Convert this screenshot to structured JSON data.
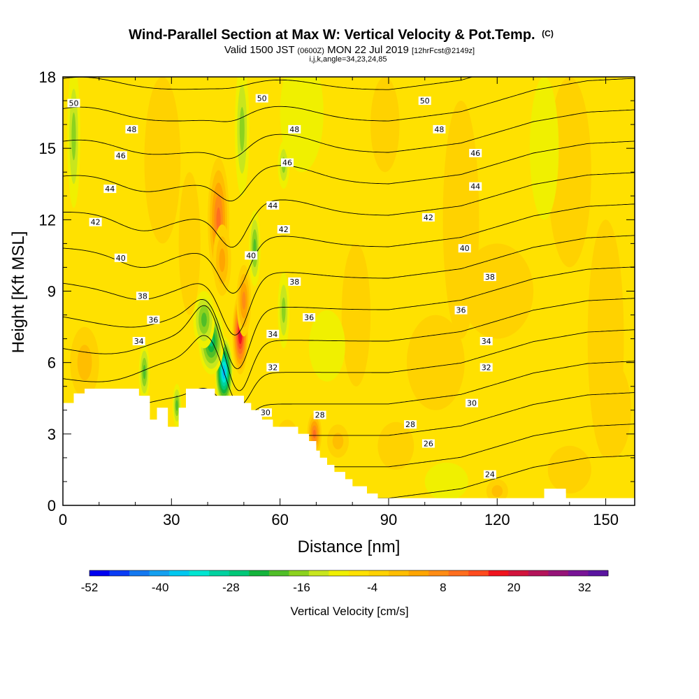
{
  "chart_data": {
    "type": "heatmap",
    "title": "Wind-Parallel Section at Max W: Vertical Velocity & Pot.Temp.",
    "title_mark": "(C)",
    "subtitle_main": "Valid 1500 JST",
    "subtitle_z": "(0600Z)",
    "subtitle_date": "MON 22 Jul 2019",
    "subtitle_fcst": "[12hrFcst@2149z]",
    "subtitle2": "i,j,k,angle=34,23,24,85",
    "xlabel": "Distance [nm]",
    "ylabel": "Height [Kft MSL]",
    "xlim": [
      0,
      158
    ],
    "ylim": [
      0,
      18
    ],
    "xticks": [
      0,
      30,
      60,
      90,
      120,
      150
    ],
    "yticks": [
      0,
      3,
      6,
      9,
      12,
      15,
      18
    ],
    "grid": false,
    "colorbar": {
      "label": "Vertical Velocity [cm/s]",
      "ticks": [
        -52,
        -40,
        -28,
        -16,
        -4,
        8,
        20,
        32
      ],
      "range": [
        -52,
        36
      ],
      "step": 4,
      "colors": [
        "#0000f0",
        "#0a3cf5",
        "#1478f0",
        "#14a0f0",
        "#00c8f0",
        "#00e6d2",
        "#00d2a0",
        "#00c878",
        "#14b43c",
        "#50be28",
        "#8cd21e",
        "#c8e61e",
        "#f0f000",
        "#ffe100",
        "#ffd200",
        "#ffbe00",
        "#ffa500",
        "#ff8c14",
        "#ff6e1e",
        "#ff4b1e",
        "#f0141e",
        "#d2143c",
        "#b4145a",
        "#961478",
        "#781496",
        "#5a14a0"
      ]
    },
    "background_w": 1.5,
    "w_cells": [
      {
        "x": 43,
        "y": 12,
        "sx": 3,
        "sy": 2.6,
        "w": 22
      },
      {
        "x": 44,
        "y": 10.3,
        "sx": 2.5,
        "sy": 1.5,
        "w": 12
      },
      {
        "x": 49,
        "y": 7.2,
        "sx": 2.2,
        "sy": 1.7,
        "w": 34
      },
      {
        "x": 50,
        "y": 8.6,
        "sx": 2,
        "sy": 1.5,
        "w": 18
      },
      {
        "x": 44.5,
        "y": 5.6,
        "sx": 2.5,
        "sy": 1.5,
        "w": -40
      },
      {
        "x": 41,
        "y": 6.9,
        "sx": 3.5,
        "sy": 1.4,
        "w": -24
      },
      {
        "x": 39,
        "y": 7.8,
        "sx": 3,
        "sy": 1.2,
        "w": -14
      },
      {
        "x": 49.5,
        "y": 15.8,
        "sx": 2,
        "sy": 2.8,
        "w": -12
      },
      {
        "x": 53,
        "y": 10.8,
        "sx": 1.6,
        "sy": 1.6,
        "w": -16
      },
      {
        "x": 61,
        "y": 8.2,
        "sx": 1.6,
        "sy": 1.6,
        "w": -12
      },
      {
        "x": 61,
        "y": 14.3,
        "sx": 1.6,
        "sy": 1,
        "w": -10
      },
      {
        "x": 3,
        "y": 15.5,
        "sx": 1.8,
        "sy": 3,
        "w": -10
      },
      {
        "x": 22.5,
        "y": 5.6,
        "sx": 1.5,
        "sy": 1.2,
        "w": -16
      },
      {
        "x": 31.5,
        "y": 4.2,
        "sx": 1.2,
        "sy": 0.9,
        "w": -16
      },
      {
        "x": 27.5,
        "y": 14.5,
        "sx": 5,
        "sy": 3.5,
        "w": 6
      },
      {
        "x": 35,
        "y": 11,
        "sx": 3,
        "sy": 3,
        "w": 6
      },
      {
        "x": 6,
        "y": 6,
        "sx": 4,
        "sy": 1.5,
        "w": 9
      },
      {
        "x": 69.5,
        "y": 3,
        "sx": 2,
        "sy": 0.9,
        "w": 20
      },
      {
        "x": 76,
        "y": 2.7,
        "sx": 3,
        "sy": 0.7,
        "w": 10
      },
      {
        "x": 62,
        "y": 2.8,
        "sx": 3,
        "sy": 0.8,
        "w": 8
      },
      {
        "x": 89,
        "y": 16,
        "sx": 4,
        "sy": 2,
        "w": 6
      },
      {
        "x": 81,
        "y": 8,
        "sx": 4,
        "sy": 3,
        "w": 6
      },
      {
        "x": 110,
        "y": 12,
        "sx": 5,
        "sy": 5,
        "w": 5
      },
      {
        "x": 103,
        "y": 6,
        "sx": 8,
        "sy": 2,
        "w": 6
      },
      {
        "x": 66,
        "y": 16.5,
        "sx": 6,
        "sy": 2.5,
        "w": -4
      },
      {
        "x": 73,
        "y": 6.7,
        "sx": 5,
        "sy": 1.5,
        "w": -4
      },
      {
        "x": 92,
        "y": 2.5,
        "sx": 5,
        "sy": 1,
        "w": 6
      },
      {
        "x": 106,
        "y": 1,
        "sx": 6,
        "sy": 0.8,
        "w": -3
      },
      {
        "x": 120,
        "y": 0.6,
        "sx": 3,
        "sy": 0.5,
        "w": 8
      },
      {
        "x": 140,
        "y": 14,
        "sx": 6,
        "sy": 4,
        "w": 5
      },
      {
        "x": 133,
        "y": 15,
        "sx": 4,
        "sy": 3,
        "w": -4
      },
      {
        "x": 150,
        "y": 7,
        "sx": 5,
        "sy": 5,
        "w": 5
      },
      {
        "x": 140,
        "y": 1.5,
        "sx": 6,
        "sy": 1,
        "w": 6
      },
      {
        "x": 120,
        "y": 9,
        "sx": 10,
        "sy": 2,
        "w": 5
      },
      {
        "x": 152,
        "y": 4,
        "sx": 5,
        "sy": 2,
        "w": 5
      }
    ],
    "terrain": [
      [
        0,
        4.3
      ],
      [
        3,
        4.3
      ],
      [
        3,
        4.7
      ],
      [
        6,
        4.7
      ],
      [
        6,
        4.9
      ],
      [
        21,
        4.9
      ],
      [
        21,
        4.6
      ],
      [
        24,
        4.6
      ],
      [
        24,
        3.6
      ],
      [
        26,
        3.6
      ],
      [
        26,
        4.1
      ],
      [
        29,
        4.1
      ],
      [
        29,
        3.3
      ],
      [
        32,
        3.3
      ],
      [
        32,
        4.1
      ],
      [
        34,
        4.1
      ],
      [
        34,
        4.9
      ],
      [
        42,
        4.9
      ],
      [
        42,
        4.6
      ],
      [
        50,
        4.6
      ],
      [
        50,
        4.3
      ],
      [
        52,
        4.3
      ],
      [
        52,
        4
      ],
      [
        55,
        4
      ],
      [
        55,
        3.6
      ],
      [
        58,
        3.6
      ],
      [
        58,
        3.3
      ],
      [
        65,
        3.3
      ],
      [
        65,
        3
      ],
      [
        68,
        3
      ],
      [
        68,
        2.7
      ],
      [
        70,
        2.7
      ],
      [
        70,
        2.3
      ],
      [
        71,
        2.3
      ],
      [
        71,
        2
      ],
      [
        73,
        2
      ],
      [
        73,
        1.7
      ],
      [
        75,
        1.7
      ],
      [
        75,
        1.4
      ],
      [
        78,
        1.4
      ],
      [
        78,
        1.1
      ],
      [
        80,
        1.1
      ],
      [
        80,
        0.8
      ],
      [
        84,
        0.8
      ],
      [
        84,
        0.5
      ],
      [
        87,
        0.5
      ],
      [
        87,
        0.3
      ],
      [
        133,
        0.3
      ],
      [
        133,
        0.7
      ],
      [
        139,
        0.7
      ],
      [
        139,
        0.3
      ],
      [
        158,
        0.3
      ],
      [
        158,
        0
      ],
      [
        0,
        0
      ]
    ],
    "theta_baseline": [
      [
        0,
        0.3
      ],
      [
        60,
        0.3
      ],
      [
        90,
        0.3
      ],
      [
        110,
        0.7
      ],
      [
        130,
        1.6
      ],
      [
        145,
        2
      ],
      [
        158,
        2.1
      ]
    ],
    "theta_levels": [
      24,
      26,
      28,
      30,
      32,
      34,
      36,
      38,
      40,
      42,
      44,
      46,
      48,
      50
    ],
    "theta_grad": 0.48,
    "theta_perturbations": [
      {
        "x": 47,
        "y": 10,
        "sx": 4,
        "sy": 3,
        "a": -2
      },
      {
        "x": 49,
        "y": 7,
        "sx": 3,
        "sy": 2,
        "a": -1.2
      },
      {
        "x": 40,
        "y": 6.5,
        "sx": 4,
        "sy": 1.5,
        "a": 1.6
      },
      {
        "x": 60,
        "y": 14,
        "sx": 10,
        "sy": 3,
        "a": 0.8
      },
      {
        "x": 30,
        "y": 5.8,
        "sx": 10,
        "sy": 1.5,
        "a": 1
      },
      {
        "x": 20,
        "y": 7.5,
        "sx": 15,
        "sy": 3,
        "a": -0.8
      },
      {
        "x": 5,
        "y": 16,
        "sx": 10,
        "sy": 3,
        "a": 0.6
      },
      {
        "x": 22,
        "y": 11.5,
        "sx": 6,
        "sy": 2,
        "a": -0.5
      }
    ],
    "contour_labels": [
      {
        "text": "50",
        "x": 3,
        "y": 16.9
      },
      {
        "text": "50",
        "x": 55,
        "y": 17.1
      },
      {
        "text": "50",
        "x": 100,
        "y": 17
      },
      {
        "text": "48",
        "x": 19,
        "y": 15.8
      },
      {
        "text": "48",
        "x": 64,
        "y": 15.8
      },
      {
        "text": "48",
        "x": 104,
        "y": 15.8
      },
      {
        "text": "46",
        "x": 16,
        "y": 14.7
      },
      {
        "text": "46",
        "x": 62,
        "y": 14.4
      },
      {
        "text": "46",
        "x": 114,
        "y": 14.8
      },
      {
        "text": "44",
        "x": 13,
        "y": 13.3
      },
      {
        "text": "44",
        "x": 58,
        "y": 12.6
      },
      {
        "text": "44",
        "x": 114,
        "y": 13.4
      },
      {
        "text": "42",
        "x": 9,
        "y": 11.9
      },
      {
        "text": "42",
        "x": 61,
        "y": 11.6
      },
      {
        "text": "42",
        "x": 101,
        "y": 12.1
      },
      {
        "text": "40",
        "x": 16,
        "y": 10.4
      },
      {
        "text": "40",
        "x": 52,
        "y": 10.5
      },
      {
        "text": "40",
        "x": 111,
        "y": 10.8
      },
      {
        "text": "38",
        "x": 22,
        "y": 8.8
      },
      {
        "text": "38",
        "x": 64,
        "y": 9.4
      },
      {
        "text": "38",
        "x": 118,
        "y": 9.6
      },
      {
        "text": "36",
        "x": 25,
        "y": 7.8
      },
      {
        "text": "36",
        "x": 68,
        "y": 7.9
      },
      {
        "text": "36",
        "x": 110,
        "y": 8.2
      },
      {
        "text": "34",
        "x": 21,
        "y": 6.9
      },
      {
        "text": "34",
        "x": 58,
        "y": 7.2
      },
      {
        "text": "34",
        "x": 117,
        "y": 6.9
      },
      {
        "text": "32",
        "x": 58,
        "y": 5.8
      },
      {
        "text": "32",
        "x": 117,
        "y": 5.8
      },
      {
        "text": "30",
        "x": 56,
        "y": 3.9
      },
      {
        "text": "30",
        "x": 113,
        "y": 4.3
      },
      {
        "text": "28",
        "x": 71,
        "y": 3.8
      },
      {
        "text": "28",
        "x": 96,
        "y": 3.4
      },
      {
        "text": "26",
        "x": 101,
        "y": 2.6
      },
      {
        "text": "24",
        "x": 118,
        "y": 1.3
      }
    ]
  }
}
